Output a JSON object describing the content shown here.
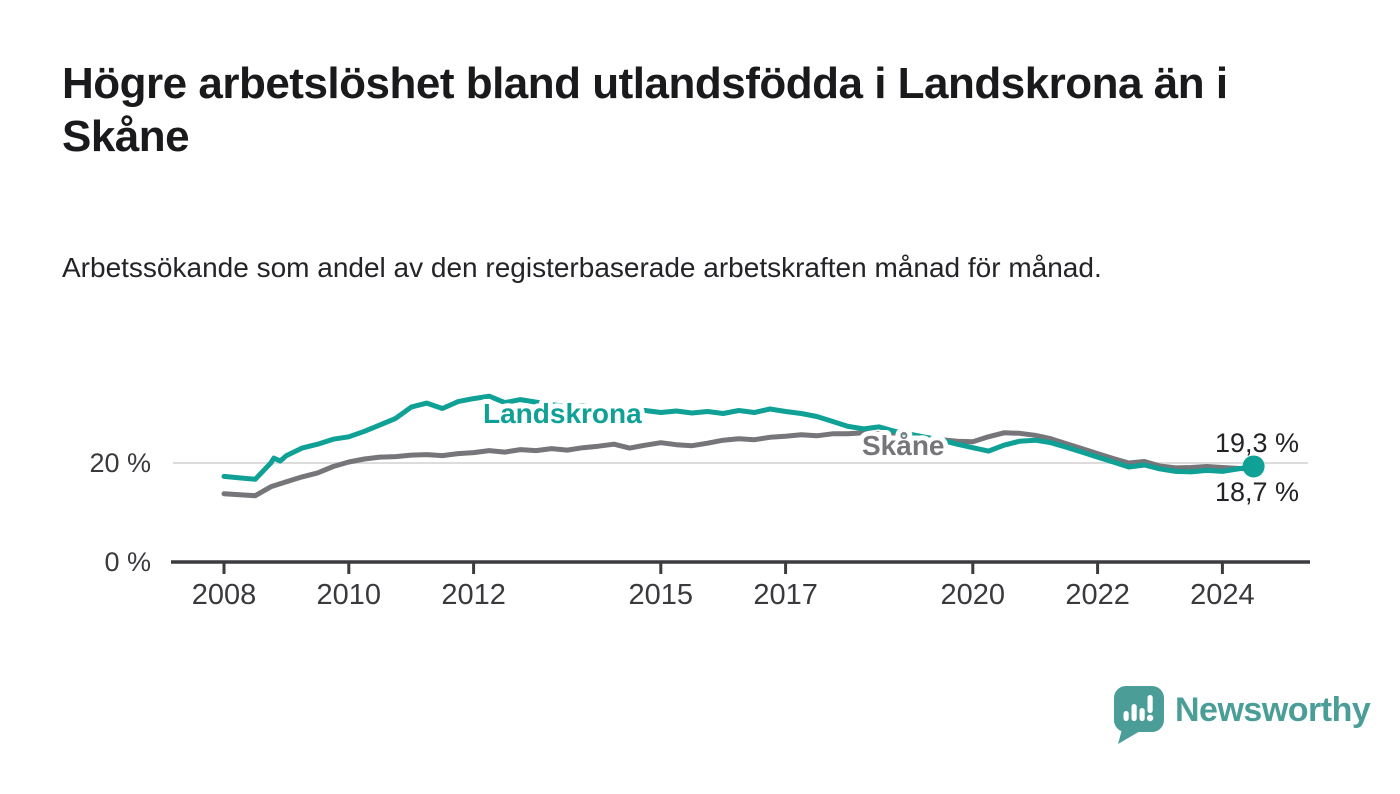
{
  "title": "Högre arbetslöshet bland utlandsfödda i Landskrona än i Skåne",
  "subtitle": "Arbetssökande som andel av den registerbaserade arbetskraften månad för månad.",
  "colors": {
    "landskrona": "#0fa196",
    "skane": "#75757a",
    "axis_line": "#3c3c40",
    "axis_text": "#3a3a3e",
    "grid_line": "#dcdcdc",
    "value_text": "#232327",
    "title_text": "#1a1a1c",
    "logo_teal": "#4b9e97",
    "background": "#ffffff"
  },
  "chart_data": {
    "type": "line",
    "title": "Högre arbetslöshet bland utlandsfödda i Landskrona än i Skåne",
    "subtitle": "Arbetssökande som andel av den registerbaserade arbetskraften månad för månad.",
    "xlabel": "",
    "ylabel": "",
    "x_unit": "year",
    "y_unit": "%",
    "x_range": [
      2007.9,
      2025.4
    ],
    "y_range": [
      0,
      40
    ],
    "grid": "horizontal-20-only",
    "legend_position": "inline-labels",
    "x_ticks": [
      {
        "value": 2008,
        "label": "2008"
      },
      {
        "value": 2010,
        "label": "2010"
      },
      {
        "value": 2012,
        "label": "2012"
      },
      {
        "value": 2015,
        "label": "2015"
      },
      {
        "value": 2017,
        "label": "2017"
      },
      {
        "value": 2020,
        "label": "2020"
      },
      {
        "value": 2022,
        "label": "2022"
      },
      {
        "value": 2024,
        "label": "2024"
      }
    ],
    "y_ticks": [
      {
        "value": 0,
        "label": "0 %"
      },
      {
        "value": 20,
        "label": "20 %"
      }
    ],
    "series": [
      {
        "name": "Landskrona",
        "color": "#0fa196",
        "end_label": "19,3 %",
        "latest_value": 19.3,
        "end_dot": true,
        "points": [
          [
            2008.0,
            17.3
          ],
          [
            2008.25,
            17.0
          ],
          [
            2008.5,
            16.7
          ],
          [
            2008.75,
            20.0
          ],
          [
            2008.8,
            21.0
          ],
          [
            2008.9,
            20.4
          ],
          [
            2009.0,
            21.5
          ],
          [
            2009.25,
            23.0
          ],
          [
            2009.5,
            23.8
          ],
          [
            2009.75,
            24.8
          ],
          [
            2010.0,
            25.3
          ],
          [
            2010.25,
            26.4
          ],
          [
            2010.5,
            27.7
          ],
          [
            2010.75,
            29.0
          ],
          [
            2011.0,
            31.3
          ],
          [
            2011.25,
            32.1
          ],
          [
            2011.5,
            31.0
          ],
          [
            2011.75,
            32.4
          ],
          [
            2012.0,
            33.0
          ],
          [
            2012.25,
            33.5
          ],
          [
            2012.5,
            32.2
          ],
          [
            2012.75,
            32.8
          ],
          [
            2013.0,
            32.3
          ],
          [
            2013.25,
            31.8
          ],
          [
            2013.5,
            31.4
          ],
          [
            2013.75,
            31.6
          ],
          [
            2014.0,
            31.2
          ],
          [
            2014.25,
            30.8
          ],
          [
            2014.5,
            30.4
          ],
          [
            2014.75,
            30.6
          ],
          [
            2015.0,
            30.2
          ],
          [
            2015.25,
            30.5
          ],
          [
            2015.5,
            30.1
          ],
          [
            2015.75,
            30.4
          ],
          [
            2016.0,
            30.0
          ],
          [
            2016.25,
            30.6
          ],
          [
            2016.5,
            30.2
          ],
          [
            2016.75,
            30.9
          ],
          [
            2017.0,
            30.4
          ],
          [
            2017.25,
            30.0
          ],
          [
            2017.5,
            29.4
          ],
          [
            2017.75,
            28.4
          ],
          [
            2018.0,
            27.4
          ],
          [
            2018.25,
            26.9
          ],
          [
            2018.5,
            27.3
          ],
          [
            2018.75,
            26.4
          ],
          [
            2019.0,
            25.8
          ],
          [
            2019.25,
            25.2
          ],
          [
            2019.5,
            24.6
          ],
          [
            2019.75,
            23.8
          ],
          [
            2020.0,
            23.1
          ],
          [
            2020.25,
            22.4
          ],
          [
            2020.5,
            23.6
          ],
          [
            2020.75,
            24.4
          ],
          [
            2021.0,
            24.6
          ],
          [
            2021.25,
            24.1
          ],
          [
            2021.5,
            23.2
          ],
          [
            2021.75,
            22.2
          ],
          [
            2022.0,
            21.2
          ],
          [
            2022.25,
            20.2
          ],
          [
            2022.5,
            19.2
          ],
          [
            2022.75,
            19.6
          ],
          [
            2023.0,
            18.8
          ],
          [
            2023.25,
            18.3
          ],
          [
            2023.5,
            18.2
          ],
          [
            2023.75,
            18.5
          ],
          [
            2024.0,
            18.3
          ],
          [
            2024.25,
            18.8
          ],
          [
            2024.5,
            19.3
          ]
        ]
      },
      {
        "name": "Skåne",
        "color": "#75757a",
        "end_label": "18,7 %",
        "latest_value": 18.7,
        "end_dot": false,
        "points": [
          [
            2008.0,
            13.8
          ],
          [
            2008.25,
            13.6
          ],
          [
            2008.5,
            13.4
          ],
          [
            2008.75,
            15.2
          ],
          [
            2009.0,
            16.2
          ],
          [
            2009.25,
            17.2
          ],
          [
            2009.5,
            18.0
          ],
          [
            2009.75,
            19.3
          ],
          [
            2010.0,
            20.2
          ],
          [
            2010.25,
            20.8
          ],
          [
            2010.5,
            21.2
          ],
          [
            2010.75,
            21.3
          ],
          [
            2011.0,
            21.6
          ],
          [
            2011.25,
            21.7
          ],
          [
            2011.5,
            21.5
          ],
          [
            2011.75,
            21.9
          ],
          [
            2012.0,
            22.1
          ],
          [
            2012.25,
            22.5
          ],
          [
            2012.5,
            22.2
          ],
          [
            2012.75,
            22.7
          ],
          [
            2013.0,
            22.5
          ],
          [
            2013.25,
            22.9
          ],
          [
            2013.5,
            22.6
          ],
          [
            2013.75,
            23.1
          ],
          [
            2014.0,
            23.4
          ],
          [
            2014.25,
            23.8
          ],
          [
            2014.5,
            23.0
          ],
          [
            2014.75,
            23.6
          ],
          [
            2015.0,
            24.1
          ],
          [
            2015.25,
            23.7
          ],
          [
            2015.5,
            23.5
          ],
          [
            2015.75,
            24.0
          ],
          [
            2016.0,
            24.6
          ],
          [
            2016.25,
            24.9
          ],
          [
            2016.5,
            24.7
          ],
          [
            2016.75,
            25.2
          ],
          [
            2017.0,
            25.4
          ],
          [
            2017.25,
            25.7
          ],
          [
            2017.5,
            25.5
          ],
          [
            2017.75,
            25.9
          ],
          [
            2018.0,
            25.9
          ],
          [
            2018.25,
            26.1
          ],
          [
            2018.5,
            25.9
          ],
          [
            2018.75,
            25.7
          ],
          [
            2019.0,
            25.4
          ],
          [
            2019.25,
            25.1
          ],
          [
            2019.5,
            24.7
          ],
          [
            2019.75,
            24.4
          ],
          [
            2020.0,
            24.3
          ],
          [
            2020.25,
            25.3
          ],
          [
            2020.5,
            26.1
          ],
          [
            2020.75,
            26.0
          ],
          [
            2021.0,
            25.6
          ],
          [
            2021.25,
            24.9
          ],
          [
            2021.5,
            23.9
          ],
          [
            2021.75,
            22.9
          ],
          [
            2022.0,
            21.9
          ],
          [
            2022.25,
            20.9
          ],
          [
            2022.5,
            20.0
          ],
          [
            2022.75,
            20.3
          ],
          [
            2023.0,
            19.4
          ],
          [
            2023.25,
            19.0
          ],
          [
            2023.5,
            19.1
          ],
          [
            2023.75,
            19.3
          ],
          [
            2024.0,
            19.1
          ],
          [
            2024.25,
            18.9
          ],
          [
            2024.5,
            18.7
          ]
        ]
      }
    ]
  },
  "logo": {
    "text": "Newsworthy"
  }
}
